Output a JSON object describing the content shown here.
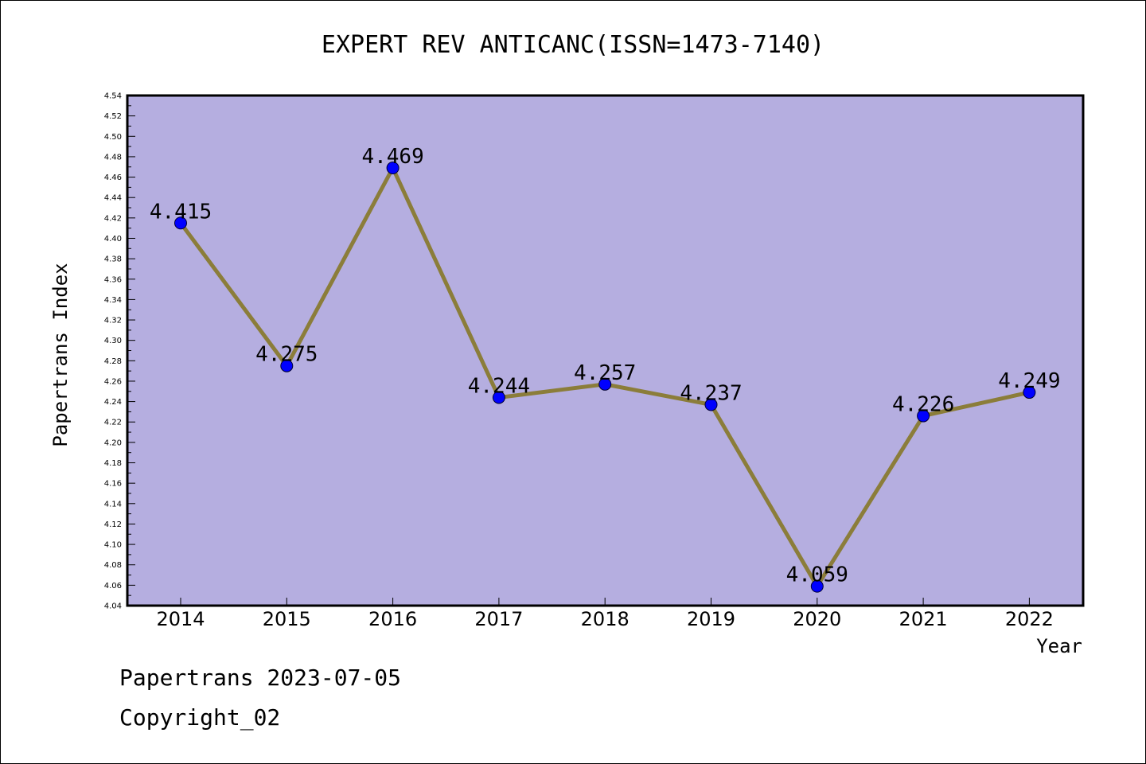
{
  "chart_data": {
    "type": "line",
    "title": "EXPERT REV ANTICANC(ISSN=1473-7140)",
    "xlabel": "Year",
    "ylabel": "Papertrans Index",
    "categories": [
      "2014",
      "2015",
      "2016",
      "2017",
      "2018",
      "2019",
      "2020",
      "2021",
      "2022"
    ],
    "series": [
      {
        "values": [
          4.415,
          4.275,
          4.469,
          4.244,
          4.257,
          4.237,
          4.059,
          4.226,
          4.249
        ]
      }
    ],
    "data_labels": [
      "4.415",
      "4.275",
      "4.469",
      "4.244",
      "4.257",
      "4.237",
      "4.059",
      "4.226",
      "4.249"
    ],
    "ylim": [
      4.04,
      4.54
    ],
    "yticks": [
      "4.04",
      "4.06",
      "4.08",
      "4.10",
      "4.12",
      "4.14",
      "4.16",
      "4.18",
      "4.20",
      "4.22",
      "4.24",
      "4.26",
      "4.28",
      "4.30",
      "4.32",
      "4.34",
      "4.36",
      "4.38",
      "4.40",
      "4.42",
      "4.44",
      "4.46",
      "4.48",
      "4.50",
      "4.52",
      "4.54"
    ],
    "grid": false,
    "legend": "none",
    "colors": {
      "plot_background": "#b5aee0",
      "line": "#8b7d3a",
      "marker": "#0000ff"
    }
  },
  "footer": {
    "line1": "Papertrans 2023-07-05",
    "line2": "Copyright_02"
  }
}
